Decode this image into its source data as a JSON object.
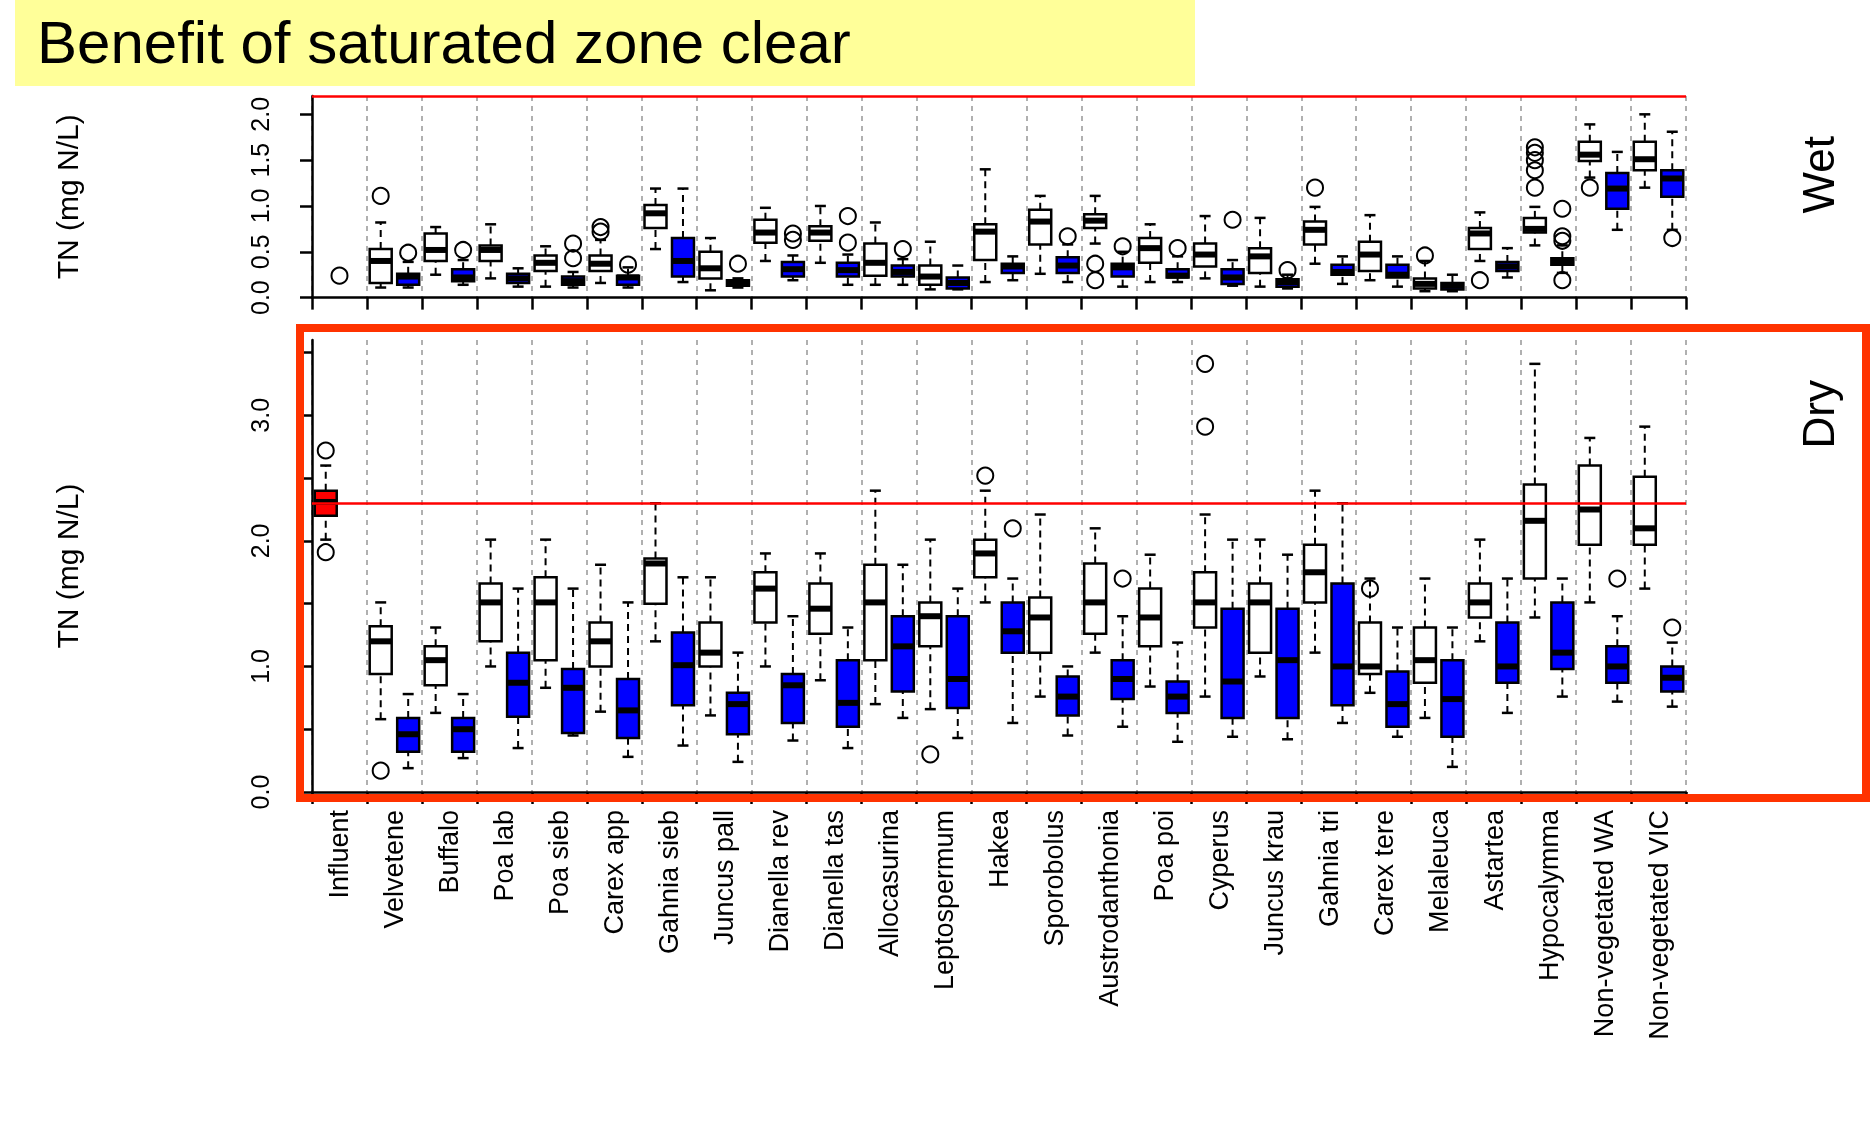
{
  "chart_data": [
    {
      "type": "box",
      "title": "Benefit of saturated zone clear",
      "ylabel": "TN (mg N/L)",
      "annotations": [
        "Wet"
      ],
      "categories": [
        "Influent",
        "Velvetene",
        "Buffalo",
        "Poa lab",
        "Poa sieb",
        "Carex app",
        "Gahnia sieb",
        "Juncus pall",
        "Dianella rev",
        "Dianella tas",
        "Allocasurina",
        "Leptospermum",
        "Hakea",
        "Sporobolus",
        "Austrodanthonia",
        "Poa poi",
        "Cyperus",
        "Juncus krau",
        "Gahnia tri",
        "Carex tere",
        "Melaleuca",
        "Astartea",
        "Hypocalymma",
        "Non-vegetated WA",
        "Non-vegetated VIC"
      ],
      "ylim": [
        0,
        2.2
      ],
      "yticks": [
        {
          "value": 0,
          "label": "0.0"
        },
        {
          "value": 0.5,
          "label": "0.5"
        },
        {
          "value": 1,
          "label": "1.0"
        },
        {
          "value": 1.5,
          "label": "1.5"
        },
        {
          "value": 2,
          "label": "2.0"
        }
      ],
      "tick_labels": "y",
      "grid": "x",
      "marker": "circle",
      "ref_lines": [
        {
          "axis": "y",
          "value": 2.2,
          "color": "#ff0000"
        }
      ],
      "series": [
        {
          "type": "box",
          "color": "#ffffff",
          "boxes": [
            null,
            {
              "low": 0.11,
              "q1": 0.16,
              "median": 0.4,
              "q3": 0.53,
              "high": 0.82,
              "outliers": [
                1.11
              ]
            },
            {
              "low": 0.25,
              "q1": 0.4,
              "median": 0.52,
              "q3": 0.7,
              "high": 0.77
            },
            {
              "low": 0.21,
              "q1": 0.4,
              "median": 0.52,
              "q3": 0.57,
              "high": 0.8
            },
            {
              "low": 0.12,
              "q1": 0.29,
              "median": 0.38,
              "q3": 0.46,
              "high": 0.56
            },
            {
              "low": 0.16,
              "q1": 0.29,
              "median": 0.37,
              "q3": 0.46,
              "high": 0.63,
              "outliers": [
                0.72,
                0.77
              ]
            },
            {
              "low": 0.53,
              "q1": 0.76,
              "median": 0.92,
              "q3": 1.01,
              "high": 1.19
            },
            {
              "low": 0.08,
              "q1": 0.21,
              "median": 0.32,
              "q3": 0.5,
              "high": 0.65
            },
            {
              "low": 0.4,
              "q1": 0.6,
              "median": 0.71,
              "q3": 0.85,
              "high": 0.98
            },
            {
              "low": 0.38,
              "q1": 0.62,
              "median": 0.71,
              "q3": 0.78,
              "high": 1.0
            },
            {
              "low": 0.14,
              "q1": 0.24,
              "median": 0.38,
              "q3": 0.59,
              "high": 0.82
            },
            {
              "low": 0.09,
              "q1": 0.14,
              "median": 0.23,
              "q3": 0.35,
              "high": 0.61
            },
            {
              "low": 0.17,
              "q1": 0.41,
              "median": 0.72,
              "q3": 0.8,
              "high": 1.4
            },
            {
              "low": 0.26,
              "q1": 0.58,
              "median": 0.83,
              "q3": 0.96,
              "high": 1.11
            },
            {
              "low": 0.59,
              "q1": 0.76,
              "median": 0.84,
              "q3": 0.91,
              "high": 1.11,
              "outliers": [
                0.37,
                0.19
              ]
            },
            {
              "low": 0.17,
              "q1": 0.38,
              "median": 0.54,
              "q3": 0.65,
              "high": 0.8
            },
            {
              "low": 0.21,
              "q1": 0.34,
              "median": 0.47,
              "q3": 0.59,
              "high": 0.89
            },
            {
              "low": 0.12,
              "q1": 0.27,
              "median": 0.45,
              "q3": 0.54,
              "high": 0.87
            },
            {
              "low": 0.37,
              "q1": 0.58,
              "median": 0.74,
              "q3": 0.83,
              "high": 0.99,
              "outliers": [
                1.2
              ]
            },
            {
              "low": 0.19,
              "q1": 0.29,
              "median": 0.47,
              "q3": 0.61,
              "high": 0.9
            },
            {
              "low": 0.07,
              "q1": 0.1,
              "median": 0.15,
              "q3": 0.21,
              "high": 0.4,
              "outliers": [
                0.46
              ]
            },
            {
              "low": 0.4,
              "q1": 0.53,
              "median": 0.7,
              "q3": 0.76,
              "high": 0.93,
              "outliers": [
                0.19
              ]
            },
            {
              "low": 0.57,
              "q1": 0.71,
              "median": 0.75,
              "q3": 0.87,
              "high": 0.99,
              "outliers": [
                1.2,
                1.39,
                1.5,
                1.58,
                1.64
              ]
            },
            {
              "low": 1.31,
              "q1": 1.49,
              "median": 1.56,
              "q3": 1.7,
              "high": 1.89,
              "outliers": [
                1.2
              ]
            },
            {
              "low": 1.2,
              "q1": 1.39,
              "median": 1.51,
              "q3": 1.7,
              "high": 2.0
            }
          ]
        },
        {
          "type": "box",
          "color": "#0000ff",
          "boxes": [
            null,
            {
              "low": 0.11,
              "q1": 0.14,
              "median": 0.23,
              "q3": 0.26,
              "high": 0.39,
              "outliers": [
                0.49
              ]
            },
            {
              "low": 0.14,
              "q1": 0.18,
              "median": 0.22,
              "q3": 0.31,
              "high": 0.41,
              "outliers": [
                0.52
              ]
            },
            {
              "low": 0.12,
              "q1": 0.16,
              "median": 0.21,
              "q3": 0.26,
              "high": 0.32
            },
            {
              "low": 0.11,
              "q1": 0.14,
              "median": 0.18,
              "q3": 0.23,
              "high": 0.28,
              "outliers": [
                0.43,
                0.59
              ]
            },
            {
              "low": 0.11,
              "q1": 0.14,
              "median": 0.22,
              "q3": 0.24,
              "high": 0.33,
              "outliers": [
                0.36
              ]
            },
            {
              "low": 0.17,
              "q1": 0.23,
              "median": 0.4,
              "q3": 0.65,
              "high": 1.19
            },
            {
              "low": 0.11,
              "q1": 0.13,
              "median": 0.16,
              "q3": 0.19,
              "high": 0.21,
              "outliers": [
                0.37
              ]
            },
            {
              "low": 0.19,
              "q1": 0.23,
              "median": 0.31,
              "q3": 0.39,
              "high": 0.46,
              "outliers": [
                0.63,
                0.7
              ]
            },
            {
              "low": 0.14,
              "q1": 0.23,
              "median": 0.3,
              "q3": 0.38,
              "high": 0.47,
              "outliers": [
                0.6,
                0.89
              ]
            },
            {
              "low": 0.14,
              "q1": 0.23,
              "median": 0.28,
              "q3": 0.35,
              "high": 0.42,
              "outliers": [
                0.53
              ]
            },
            {
              "low": 0.09,
              "q1": 0.1,
              "median": 0.16,
              "q3": 0.22,
              "high": 0.35
            },
            {
              "low": 0.19,
              "q1": 0.27,
              "median": 0.34,
              "q3": 0.37,
              "high": 0.45
            },
            {
              "low": 0.17,
              "q1": 0.27,
              "median": 0.35,
              "q3": 0.44,
              "high": 0.58,
              "outliers": [
                0.67
              ]
            },
            {
              "low": 0.12,
              "q1": 0.23,
              "median": 0.33,
              "q3": 0.37,
              "high": 0.5,
              "outliers": [
                0.56
              ]
            },
            {
              "low": 0.17,
              "q1": 0.22,
              "median": 0.24,
              "q3": 0.31,
              "high": 0.45,
              "outliers": [
                0.54
              ]
            },
            {
              "low": 0.13,
              "q1": 0.15,
              "median": 0.22,
              "q3": 0.31,
              "high": 0.41,
              "outliers": [
                0.85
              ]
            },
            {
              "low": 0.1,
              "q1": 0.12,
              "median": 0.17,
              "q3": 0.2,
              "high": 0.25,
              "outliers": [
                0.3
              ]
            },
            {
              "low": 0.15,
              "q1": 0.25,
              "median": 0.28,
              "q3": 0.36,
              "high": 0.45
            },
            {
              "low": 0.12,
              "q1": 0.22,
              "median": 0.25,
              "q3": 0.36,
              "high": 0.45
            },
            {
              "low": 0.07,
              "q1": 0.09,
              "median": 0.13,
              "q3": 0.16,
              "high": 0.25
            },
            {
              "low": 0.22,
              "q1": 0.29,
              "median": 0.34,
              "q3": 0.39,
              "high": 0.54
            },
            {
              "low": 0.27,
              "q1": 0.36,
              "median": 0.39,
              "q3": 0.43,
              "high": 0.57,
              "outliers": [
                0.19,
                0.62,
                0.67,
                0.97
              ]
            },
            {
              "low": 0.74,
              "q1": 0.97,
              "median": 1.19,
              "q3": 1.36,
              "high": 1.59
            },
            {
              "low": 0.74,
              "q1": 1.1,
              "median": 1.3,
              "q3": 1.39,
              "high": 1.81,
              "outliers": [
                0.65
              ]
            }
          ]
        },
        {
          "type": "scatter",
          "x": [
            "Influent"
          ],
          "values": [
            0.24
          ]
        }
      ]
    },
    {
      "type": "box",
      "ylabel": "TN (mg N/L)",
      "annotations": [
        "Dry"
      ],
      "categories": [
        "Influent",
        "Velvetene",
        "Buffalo",
        "Poa lab",
        "Poa sieb",
        "Carex app",
        "Gahnia sieb",
        "Juncus pall",
        "Dianella rev",
        "Dianella tas",
        "Allocasurina",
        "Leptospermum",
        "Hakea",
        "Sporobolus",
        "Austrodanthonia",
        "Poa poi",
        "Cyperus",
        "Juncus krau",
        "Gahnia tri",
        "Carex tere",
        "Melaleuca",
        "Astartea",
        "Hypocalymma",
        "Non-vegetated WA",
        "Non-vegetated VIC"
      ],
      "ylim": [
        0,
        3.6
      ],
      "yticks": [
        {
          "value": 0,
          "label": "0.0"
        },
        {
          "value": 0.5,
          "label": null
        },
        {
          "value": 1,
          "label": "1.0"
        },
        {
          "value": 1.5,
          "label": null
        },
        {
          "value": 2,
          "label": "2.0"
        },
        {
          "value": 2.5,
          "label": null
        },
        {
          "value": 3,
          "label": "3.0"
        },
        {
          "value": 3.5,
          "label": null
        }
      ],
      "grid": "x",
      "marker": "circle",
      "ref_lines": [
        {
          "axis": "y",
          "value": 2.3,
          "color": "#ff0000"
        }
      ],
      "series": [
        {
          "type": "box",
          "colors": [
            "#ff0000",
            "#ffffff",
            "#ffffff",
            "#ffffff",
            "#ffffff",
            "#ffffff",
            "#ffffff",
            "#ffffff",
            "#ffffff",
            "#ffffff",
            "#ffffff",
            "#ffffff",
            "#ffffff",
            "#ffffff",
            "#ffffff",
            "#ffffff",
            "#ffffff",
            "#ffffff",
            "#ffffff",
            "#ffffff",
            "#ffffff",
            "#ffffff",
            "#ffffff",
            "#ffffff",
            "#ffffff"
          ],
          "boxes": [
            {
              "low": 2.01,
              "q1": 2.2,
              "median": 2.31,
              "q3": 2.4,
              "high": 2.6,
              "outliers": [
                1.91,
                2.72
              ]
            },
            {
              "low": 0.58,
              "q1": 0.94,
              "median": 1.2,
              "q3": 1.32,
              "high": 1.51,
              "outliers": [
                0.17
              ]
            },
            {
              "low": 0.63,
              "q1": 0.85,
              "median": 1.05,
              "q3": 1.16,
              "high": 1.31
            },
            {
              "low": 1.0,
              "q1": 1.2,
              "median": 1.51,
              "q3": 1.66,
              "high": 2.01
            },
            {
              "low": 0.83,
              "q1": 1.05,
              "median": 1.51,
              "q3": 1.71,
              "high": 2.01
            },
            {
              "low": 0.64,
              "q1": 1.0,
              "median": 1.2,
              "q3": 1.35,
              "high": 1.81
            },
            {
              "low": 1.2,
              "q1": 1.5,
              "median": 1.82,
              "q3": 1.86,
              "high": 2.3
            },
            {
              "low": 0.61,
              "q1": 1.0,
              "median": 1.11,
              "q3": 1.35,
              "high": 1.71
            },
            {
              "low": 1.0,
              "q1": 1.35,
              "median": 1.62,
              "q3": 1.75,
              "high": 1.9
            },
            {
              "low": 0.89,
              "q1": 1.26,
              "median": 1.46,
              "q3": 1.66,
              "high": 1.9
            },
            {
              "low": 0.7,
              "q1": 1.05,
              "median": 1.51,
              "q3": 1.81,
              "high": 2.4
            },
            {
              "low": 0.66,
              "q1": 1.16,
              "median": 1.4,
              "q3": 1.51,
              "high": 2.01,
              "outliers": [
                0.3
              ]
            },
            {
              "low": 1.51,
              "q1": 1.71,
              "median": 1.9,
              "q3": 2.01,
              "high": 2.4,
              "outliers": [
                2.52
              ]
            },
            {
              "low": 0.76,
              "q1": 1.11,
              "median": 1.39,
              "q3": 1.55,
              "high": 2.21
            },
            {
              "low": 1.11,
              "q1": 1.26,
              "median": 1.51,
              "q3": 1.82,
              "high": 2.1
            },
            {
              "low": 0.84,
              "q1": 1.16,
              "median": 1.39,
              "q3": 1.62,
              "high": 1.89
            },
            {
              "low": 0.76,
              "q1": 1.31,
              "median": 1.51,
              "q3": 1.75,
              "high": 2.21,
              "outliers": [
                2.91,
                3.41
              ]
            },
            {
              "low": 0.92,
              "q1": 1.11,
              "median": 1.51,
              "q3": 1.66,
              "high": 2.01
            },
            {
              "low": 1.11,
              "q1": 1.51,
              "median": 1.75,
              "q3": 1.97,
              "high": 2.4
            },
            {
              "low": 0.79,
              "q1": 0.94,
              "median": 1.0,
              "q3": 1.35,
              "high": 1.7,
              "outliers": [
                1.62
              ]
            },
            {
              "low": 0.59,
              "q1": 0.87,
              "median": 1.05,
              "q3": 1.31,
              "high": 1.7
            },
            {
              "low": 1.2,
              "q1": 1.39,
              "median": 1.51,
              "q3": 1.66,
              "high": 2.01
            },
            {
              "low": 1.39,
              "q1": 1.7,
              "median": 2.16,
              "q3": 2.45,
              "high": 3.41
            },
            {
              "low": 1.51,
              "q1": 1.97,
              "median": 2.25,
              "q3": 2.6,
              "high": 2.82
            },
            {
              "low": 1.62,
              "q1": 1.97,
              "median": 2.1,
              "q3": 2.51,
              "high": 2.91
            }
          ]
        },
        {
          "type": "box",
          "color": "#0000ff",
          "boxes": [
            null,
            {
              "low": 0.19,
              "q1": 0.32,
              "median": 0.46,
              "q3": 0.59,
              "high": 0.78
            },
            {
              "low": 0.27,
              "q1": 0.32,
              "median": 0.5,
              "q3": 0.59,
              "high": 0.78
            },
            {
              "low": 0.35,
              "q1": 0.6,
              "median": 0.87,
              "q3": 1.11,
              "high": 1.62
            },
            {
              "low": 0.45,
              "q1": 0.47,
              "median": 0.83,
              "q3": 0.98,
              "high": 1.62
            },
            {
              "low": 0.28,
              "q1": 0.43,
              "median": 0.65,
              "q3": 0.9,
              "high": 1.51
            },
            {
              "low": 0.37,
              "q1": 0.69,
              "median": 1.01,
              "q3": 1.27,
              "high": 1.71
            },
            {
              "low": 0.24,
              "q1": 0.46,
              "median": 0.7,
              "q3": 0.79,
              "high": 1.11
            },
            {
              "low": 0.41,
              "q1": 0.55,
              "median": 0.85,
              "q3": 0.94,
              "high": 1.4
            },
            {
              "low": 0.35,
              "q1": 0.52,
              "median": 0.71,
              "q3": 1.05,
              "high": 1.31
            },
            {
              "low": 0.59,
              "q1": 0.8,
              "median": 1.16,
              "q3": 1.4,
              "high": 1.81
            },
            {
              "low": 0.43,
              "q1": 0.67,
              "median": 0.9,
              "q3": 1.4,
              "high": 1.62
            },
            {
              "low": 0.55,
              "q1": 1.11,
              "median": 1.28,
              "q3": 1.51,
              "high": 1.7,
              "outliers": [
                2.1
              ]
            },
            {
              "low": 0.45,
              "q1": 0.61,
              "median": 0.76,
              "q3": 0.92,
              "high": 1.0
            },
            {
              "low": 0.52,
              "q1": 0.74,
              "median": 0.9,
              "q3": 1.05,
              "high": 1.4,
              "outliers": [
                1.7
              ]
            },
            {
              "low": 0.4,
              "q1": 0.63,
              "median": 0.76,
              "q3": 0.88,
              "high": 1.19
            },
            {
              "low": 0.44,
              "q1": 0.59,
              "median": 0.88,
              "q3": 1.46,
              "high": 2.01
            },
            {
              "low": 0.42,
              "q1": 0.59,
              "median": 1.05,
              "q3": 1.46,
              "high": 1.89
            },
            {
              "low": 0.55,
              "q1": 0.69,
              "median": 1.0,
              "q3": 1.66,
              "high": 2.3
            },
            {
              "low": 0.44,
              "q1": 0.52,
              "median": 0.7,
              "q3": 0.96,
              "high": 1.31
            },
            {
              "low": 0.2,
              "q1": 0.44,
              "median": 0.74,
              "q3": 1.05,
              "high": 1.31
            },
            {
              "low": 0.63,
              "q1": 0.87,
              "median": 1.0,
              "q3": 1.35,
              "high": 1.7
            },
            {
              "low": 0.76,
              "q1": 0.98,
              "median": 1.11,
              "q3": 1.51,
              "high": 1.7
            },
            {
              "low": 0.72,
              "q1": 0.87,
              "median": 1.0,
              "q3": 1.16,
              "high": 1.4,
              "outliers": [
                1.7
              ]
            },
            {
              "low": 0.68,
              "q1": 0.8,
              "median": 0.91,
              "q3": 1.0,
              "high": 1.19,
              "outliers": [
                1.31
              ]
            }
          ]
        }
      ]
    }
  ]
}
